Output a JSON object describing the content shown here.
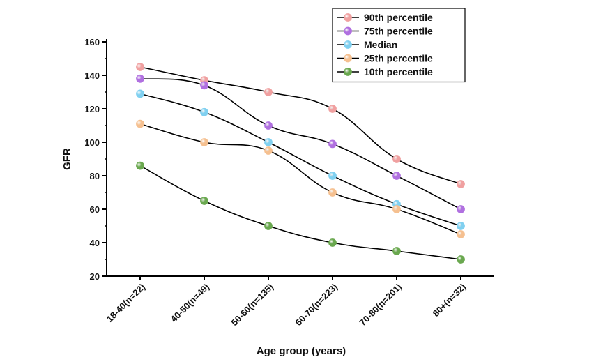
{
  "chart_data": {
    "type": "line",
    "title": "",
    "xlabel": "Age group (years)",
    "ylabel": "GFR",
    "categories": [
      "18-40(n=22)",
      "40-50(n=49)",
      "50-60(n=135)",
      "60-70(n=223)",
      "70-80(n=201)",
      "80+(n=32)"
    ],
    "ylim": [
      20,
      160
    ],
    "yticks": [
      20,
      40,
      60,
      80,
      100,
      120,
      140,
      160
    ],
    "grid": false,
    "legend_position": "top-right",
    "series": [
      {
        "name": "90th percentile",
        "color": "#f0a0a0",
        "values": [
          145,
          137,
          130,
          120,
          90,
          75
        ]
      },
      {
        "name": "75th percentile",
        "color": "#b070e0",
        "values": [
          138,
          134,
          110,
          99,
          80,
          60
        ]
      },
      {
        "name": "Median",
        "color": "#80d0f0",
        "values": [
          129,
          118,
          100,
          80,
          63,
          50
        ]
      },
      {
        "name": "25th percentile",
        "color": "#f5c090",
        "values": [
          111,
          100,
          95,
          70,
          60,
          45
        ]
      },
      {
        "name": "10th percentile",
        "color": "#6aa84f",
        "values": [
          86,
          65,
          50,
          40,
          35,
          30
        ]
      }
    ]
  }
}
